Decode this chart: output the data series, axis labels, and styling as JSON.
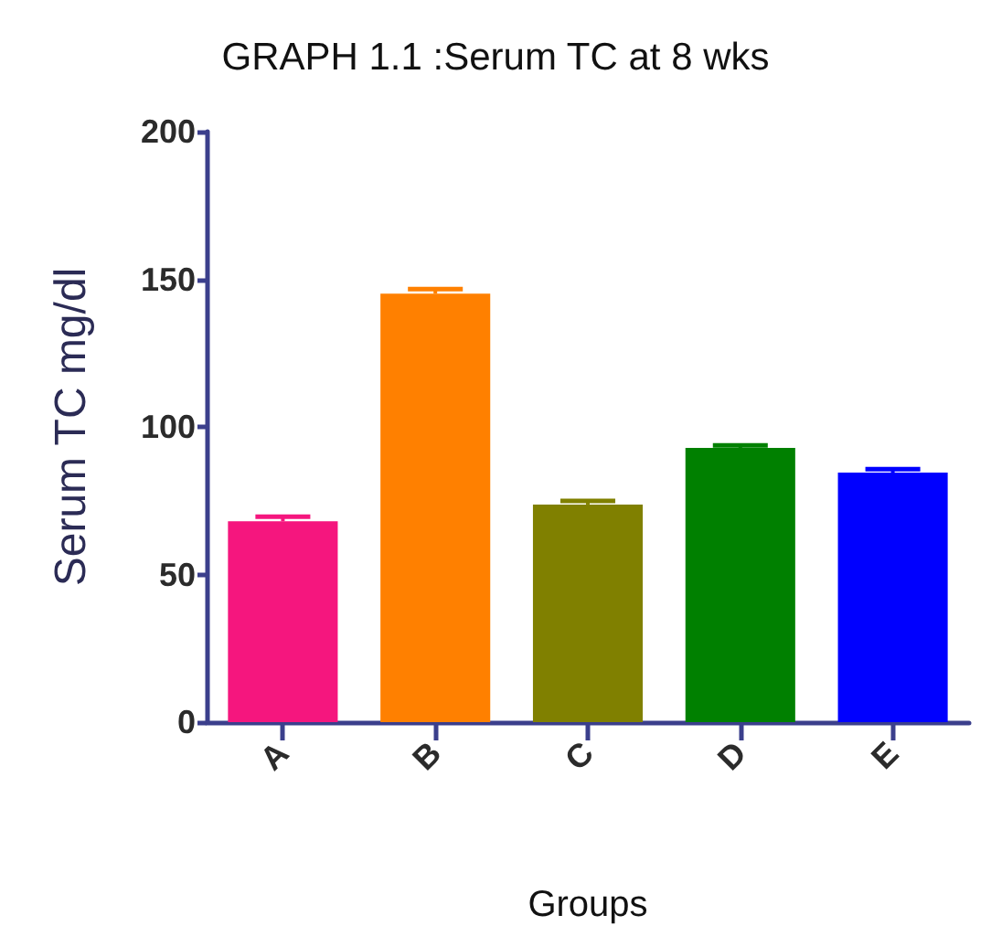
{
  "chart_data": {
    "type": "bar",
    "title": "GRAPH 1.1 :Serum TC at 8 wks",
    "xlabel": "Groups",
    "ylabel": "Serum TC mg/dl",
    "categories": [
      "A",
      "B",
      "C",
      "D",
      "E"
    ],
    "values": [
      68,
      145.1,
      73.7,
      92.9,
      84.5
    ],
    "colors": [
      "#f5167e",
      "#ff8000",
      "#808000",
      "#008000",
      "#0000ff"
    ],
    "errors": [
      [
        68,
        69.6
      ],
      [
        145.1,
        146.7
      ],
      [
        73.7,
        74.9
      ],
      [
        92.9,
        93.7
      ],
      [
        84.5,
        85.7
      ]
    ],
    "ylim": [
      0,
      200
    ],
    "yticks": [
      0,
      50,
      100,
      150,
      200
    ],
    "grid": false
  }
}
